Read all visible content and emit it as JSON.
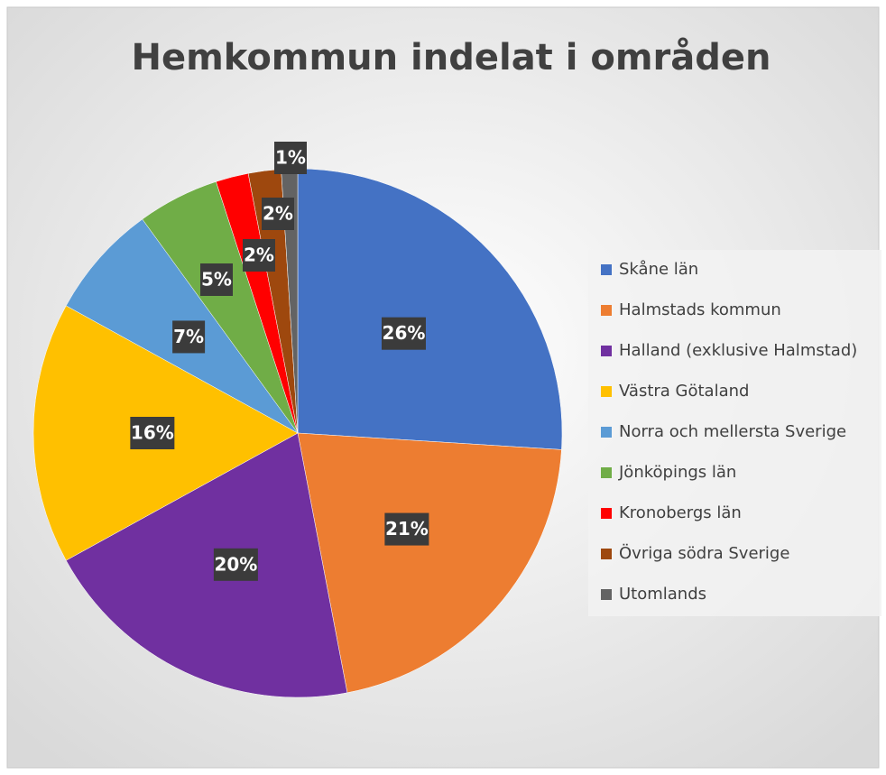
{
  "chart_data": {
    "type": "pie",
    "title": "Hemkommun indelat i områden",
    "categories": [
      "Skåne län",
      "Halmstads kommun",
      "Halland (exklusive Halmstad)",
      "Västra Götaland",
      "Norra och mellersta Sverige",
      "Jönköpings län",
      "Kronobergs län",
      "Övriga södra Sverige",
      "Utomlands"
    ],
    "values": [
      26,
      21,
      20,
      16,
      7,
      5,
      2,
      2,
      1
    ],
    "value_labels": [
      "26%",
      "21%",
      "20%",
      "16%",
      "7%",
      "5%",
      "2%",
      "2%",
      "1%"
    ],
    "colors": [
      "#4472c4",
      "#ed7d31",
      "#7030a0",
      "#ffc000",
      "#5b9bd5",
      "#70ad47",
      "#ff0000",
      "#9e480e",
      "#636363"
    ],
    "legend": "right"
  }
}
